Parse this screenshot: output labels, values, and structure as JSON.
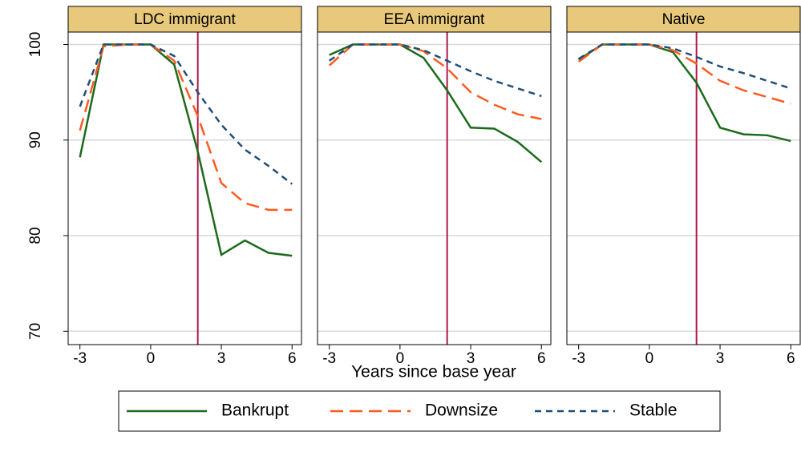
{
  "chart_data": {
    "type": "line",
    "panels": [
      "LDC immigrant",
      "EEA immigrant",
      "Native"
    ],
    "x": [
      -3,
      -2,
      -1,
      0,
      1,
      2,
      3,
      4,
      5,
      6
    ],
    "xlim": [
      -3.5,
      6.4
    ],
    "xticks": [
      -3,
      0,
      3,
      6
    ],
    "ylim": [
      68.6,
      101.3
    ],
    "yticks": [
      70,
      80,
      90,
      100
    ],
    "grid": true,
    "xline": 2,
    "xline_color": "#b0184a",
    "xlabel": "Years since base year",
    "series": [
      {
        "name": "Bankrupt",
        "color": "#1a6b1a",
        "dash": "solid",
        "values": [
          [
            88.2,
            100,
            100,
            100,
            97.9,
            88.8,
            78.0,
            79.5,
            78.2,
            77.9
          ],
          [
            98.9,
            100,
            100,
            100,
            98.6,
            95.2,
            91.3,
            91.2,
            89.8,
            87.7
          ],
          [
            98.4,
            100,
            100,
            100,
            99.2,
            96.0,
            91.3,
            90.6,
            90.5,
            89.9
          ]
        ]
      },
      {
        "name": "Downsize",
        "color": "#ff5a1f",
        "dash": "long",
        "values": [
          [
            91.0,
            99.8,
            100,
            100,
            98.3,
            92.5,
            85.5,
            83.4,
            82.7,
            82.7
          ],
          [
            97.8,
            100,
            100,
            100,
            99.3,
            97.5,
            95.0,
            93.7,
            92.7,
            92.2
          ],
          [
            98.2,
            100,
            100,
            100,
            99.4,
            98.0,
            96.2,
            95.2,
            94.5,
            93.8
          ]
        ]
      },
      {
        "name": "Stable",
        "color": "#1f4e79",
        "dash": "short",
        "values": [
          [
            93.5,
            100,
            100,
            100,
            98.8,
            95.0,
            91.6,
            89.0,
            87.3,
            85.4
          ],
          [
            98.3,
            100,
            100,
            100,
            99.4,
            98.3,
            97.2,
            96.2,
            95.4,
            94.6
          ],
          [
            98.5,
            100,
            100,
            100,
            99.6,
            98.7,
            97.7,
            97.0,
            96.2,
            95.4
          ]
        ]
      }
    ]
  }
}
